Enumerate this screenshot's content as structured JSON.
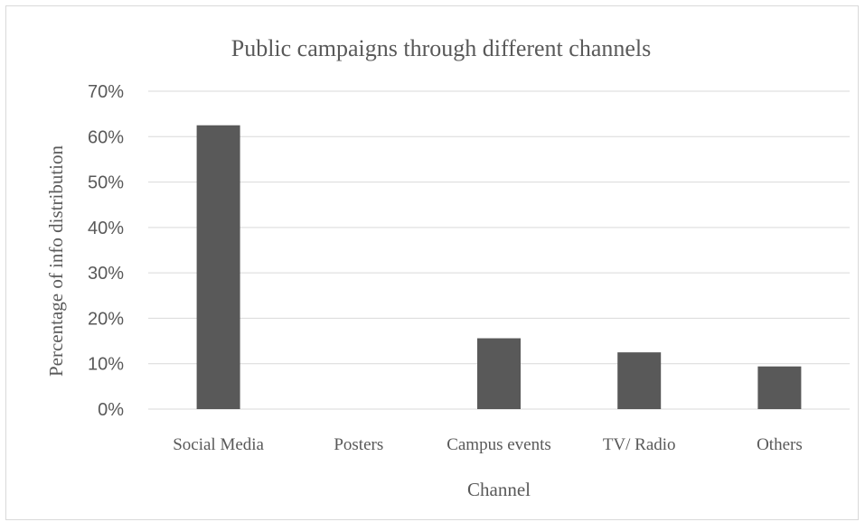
{
  "chart_data": {
    "type": "bar",
    "title": "Public campaigns through different channels",
    "xlabel": "Channel",
    "ylabel": "Percentage of info distribution",
    "categories": [
      "Social Media",
      "Posters",
      "Campus events",
      "TV/ Radio",
      "Others"
    ],
    "values": [
      62.5,
      0,
      15.6,
      12.5,
      9.4
    ],
    "ylim": [
      0,
      70
    ],
    "yticks": [
      0,
      10,
      20,
      30,
      40,
      50,
      60,
      70
    ],
    "ytick_labels": [
      "0%",
      "10%",
      "20%",
      "30%",
      "40%",
      "50%",
      "60%",
      "70%"
    ],
    "grid": true,
    "legend": "none",
    "bar_color": "#595959"
  }
}
